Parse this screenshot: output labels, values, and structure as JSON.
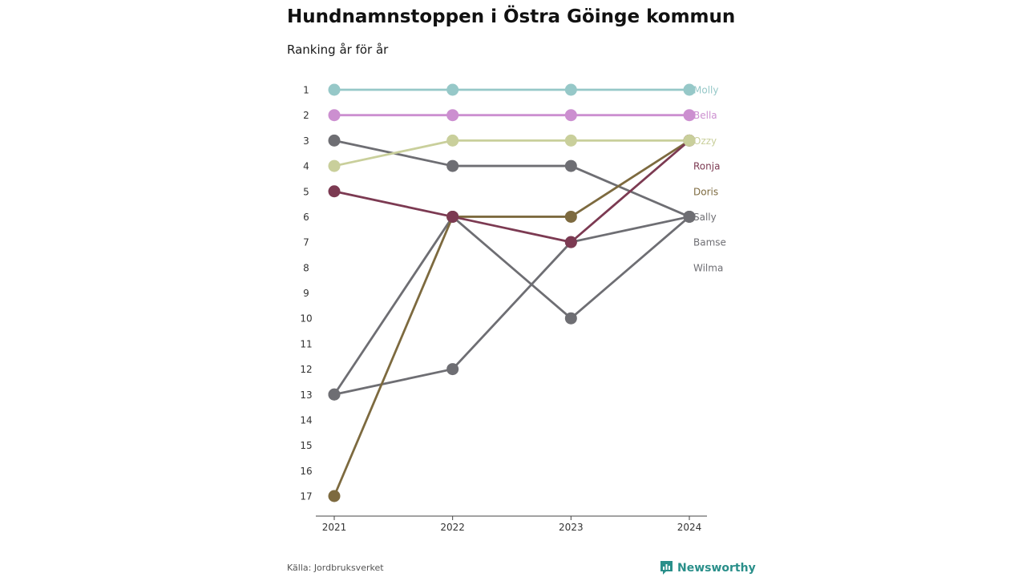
{
  "header": {
    "title": "Hundnamnstoppen i Östra Göinge kommun",
    "subtitle": "Ranking år för år"
  },
  "footer": {
    "source": "Källa: Jordbruksverket",
    "brand": "Newsworthy",
    "brand_icon": "newsworthy-logo-icon",
    "brand_color": "#2a8f8a"
  },
  "chart_data": {
    "type": "line",
    "x": [
      "2021",
      "2022",
      "2023",
      "2024"
    ],
    "y_ticks": [
      1,
      2,
      3,
      4,
      5,
      6,
      7,
      8,
      9,
      10,
      11,
      12,
      13,
      14,
      15,
      16,
      17
    ],
    "ylim": [
      1,
      17
    ],
    "y_reversed": true,
    "grid": false,
    "series": [
      {
        "name": "Wilma",
        "color": "#6e6e73",
        "values": [
          13,
          12,
          7,
          6
        ]
      },
      {
        "name": "Bamse",
        "color": "#6e6e73",
        "values": [
          13,
          6,
          10,
          6
        ]
      },
      {
        "name": "Sally",
        "color": "#6e6e73",
        "values": [
          3,
          4,
          4,
          6
        ]
      },
      {
        "name": "Doris",
        "color": "#7d6a3f",
        "values": [
          17,
          6,
          6,
          3
        ]
      },
      {
        "name": "Ronja",
        "color": "#7c3a52",
        "values": [
          5,
          6,
          7,
          3
        ]
      },
      {
        "name": "Ozzy",
        "color": "#c9cf9b",
        "values": [
          4,
          3,
          3,
          3
        ]
      },
      {
        "name": "Bella",
        "color": "#cc8fd0",
        "values": [
          2,
          2,
          2,
          2
        ]
      },
      {
        "name": "Molly",
        "color": "#96c8c8",
        "values": [
          1,
          1,
          1,
          1
        ]
      }
    ],
    "label_order": [
      "Molly",
      "Bella",
      "Ozzy",
      "Ronja",
      "Doris",
      "Sally",
      "Bamse",
      "Wilma"
    ]
  }
}
